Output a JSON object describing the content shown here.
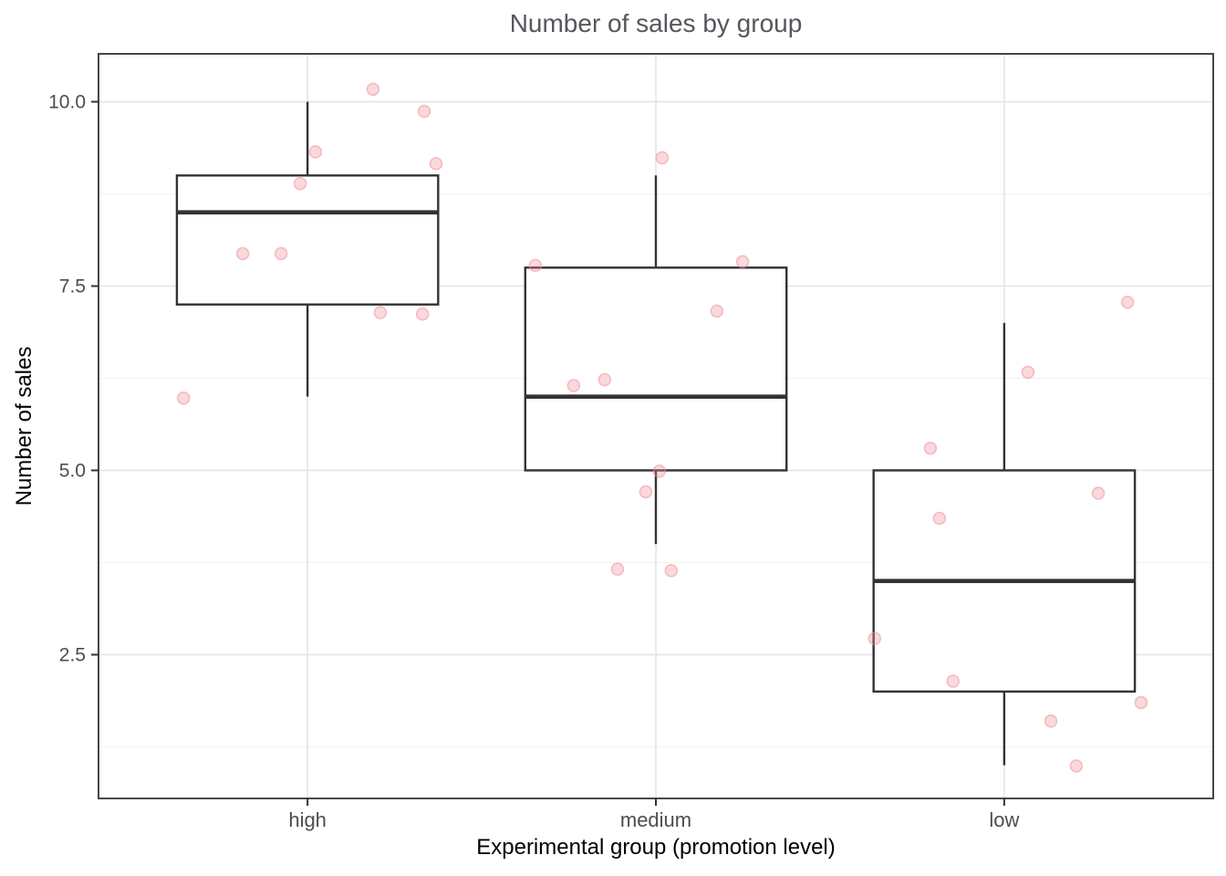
{
  "chart_data": {
    "type": "boxplot",
    "title": "Number of sales by group",
    "xlabel": "Experimental group (promotion level)",
    "ylabel": "Number of sales",
    "categories": [
      "high",
      "medium",
      "low"
    ],
    "category_x": [
      1,
      2,
      3
    ],
    "xlim": [
      0.4,
      3.6
    ],
    "ylim": [
      0.55,
      10.65
    ],
    "y_ticks": [
      2.5,
      5,
      7.5,
      10
    ],
    "y_tick_labels": [
      "2.5",
      "5.0",
      "7.5",
      "10.0"
    ],
    "y_minor_gridlines": [
      1.25,
      3.75,
      6.25,
      8.75
    ],
    "grid": "horizontal major+minor, vertical major at categories",
    "legend": "none",
    "box_width": 0.75,
    "boxes": [
      {
        "category": "high",
        "x": 1,
        "whisker_low": 6.0,
        "q1": 7.25,
        "median": 8.5,
        "q3": 9.0,
        "whisker_high": 10.0
      },
      {
        "category": "medium",
        "x": 2,
        "whisker_low": 4.0,
        "q1": 5.0,
        "median": 6.0,
        "q3": 7.75,
        "whisker_high": 9.0
      },
      {
        "category": "low",
        "x": 3,
        "whisker_low": 1.0,
        "q1": 2.0,
        "median": 3.5,
        "q3": 5.0,
        "whisker_high": 7.0
      }
    ],
    "points": [
      {
        "group": "high",
        "x": 1.188,
        "y": 10.17
      },
      {
        "group": "high",
        "x": 1.335,
        "y": 9.87
      },
      {
        "group": "high",
        "x": 1.023,
        "y": 9.32
      },
      {
        "group": "high",
        "x": 1.369,
        "y": 9.16
      },
      {
        "group": "high",
        "x": 0.979,
        "y": 8.89
      },
      {
        "group": "high",
        "x": 0.814,
        "y": 7.94
      },
      {
        "group": "high",
        "x": 0.924,
        "y": 7.94
      },
      {
        "group": "high",
        "x": 1.209,
        "y": 7.14
      },
      {
        "group": "high",
        "x": 1.33,
        "y": 7.12
      },
      {
        "group": "high",
        "x": 0.644,
        "y": 5.98
      },
      {
        "group": "medium",
        "x": 2.018,
        "y": 9.24
      },
      {
        "group": "medium",
        "x": 2.249,
        "y": 7.83
      },
      {
        "group": "medium",
        "x": 1.654,
        "y": 7.78
      },
      {
        "group": "medium",
        "x": 2.175,
        "y": 7.16
      },
      {
        "group": "medium",
        "x": 1.853,
        "y": 6.23
      },
      {
        "group": "medium",
        "x": 1.764,
        "y": 6.15
      },
      {
        "group": "medium",
        "x": 2.01,
        "y": 4.99
      },
      {
        "group": "medium",
        "x": 1.971,
        "y": 4.71
      },
      {
        "group": "medium",
        "x": 1.89,
        "y": 3.66
      },
      {
        "group": "medium",
        "x": 2.044,
        "y": 3.64
      },
      {
        "group": "low",
        "x": 3.354,
        "y": 7.28
      },
      {
        "group": "low",
        "x": 3.068,
        "y": 6.33
      },
      {
        "group": "low",
        "x": 2.788,
        "y": 5.3
      },
      {
        "group": "low",
        "x": 3.27,
        "y": 4.69
      },
      {
        "group": "low",
        "x": 2.814,
        "y": 4.35
      },
      {
        "group": "low",
        "x": 2.628,
        "y": 2.72
      },
      {
        "group": "low",
        "x": 2.853,
        "y": 2.14
      },
      {
        "group": "low",
        "x": 3.393,
        "y": 1.85
      },
      {
        "group": "low",
        "x": 3.134,
        "y": 1.6
      },
      {
        "group": "low",
        "x": 3.207,
        "y": 0.99
      }
    ]
  },
  "colors": {
    "background": "#ffffff",
    "panel_border": "#474747",
    "grid_major": "#e4e4e4",
    "grid_minor": "#f1f1f1",
    "box_border": "#333333",
    "box_fill": "#ffffff",
    "median_line": "#333333",
    "point_color": "#ee8a93",
    "title_color": "#55575c",
    "tick_label_color": "#4d4d4d",
    "axis_title_color": "#000000",
    "tick_mark_color": "#333333"
  }
}
